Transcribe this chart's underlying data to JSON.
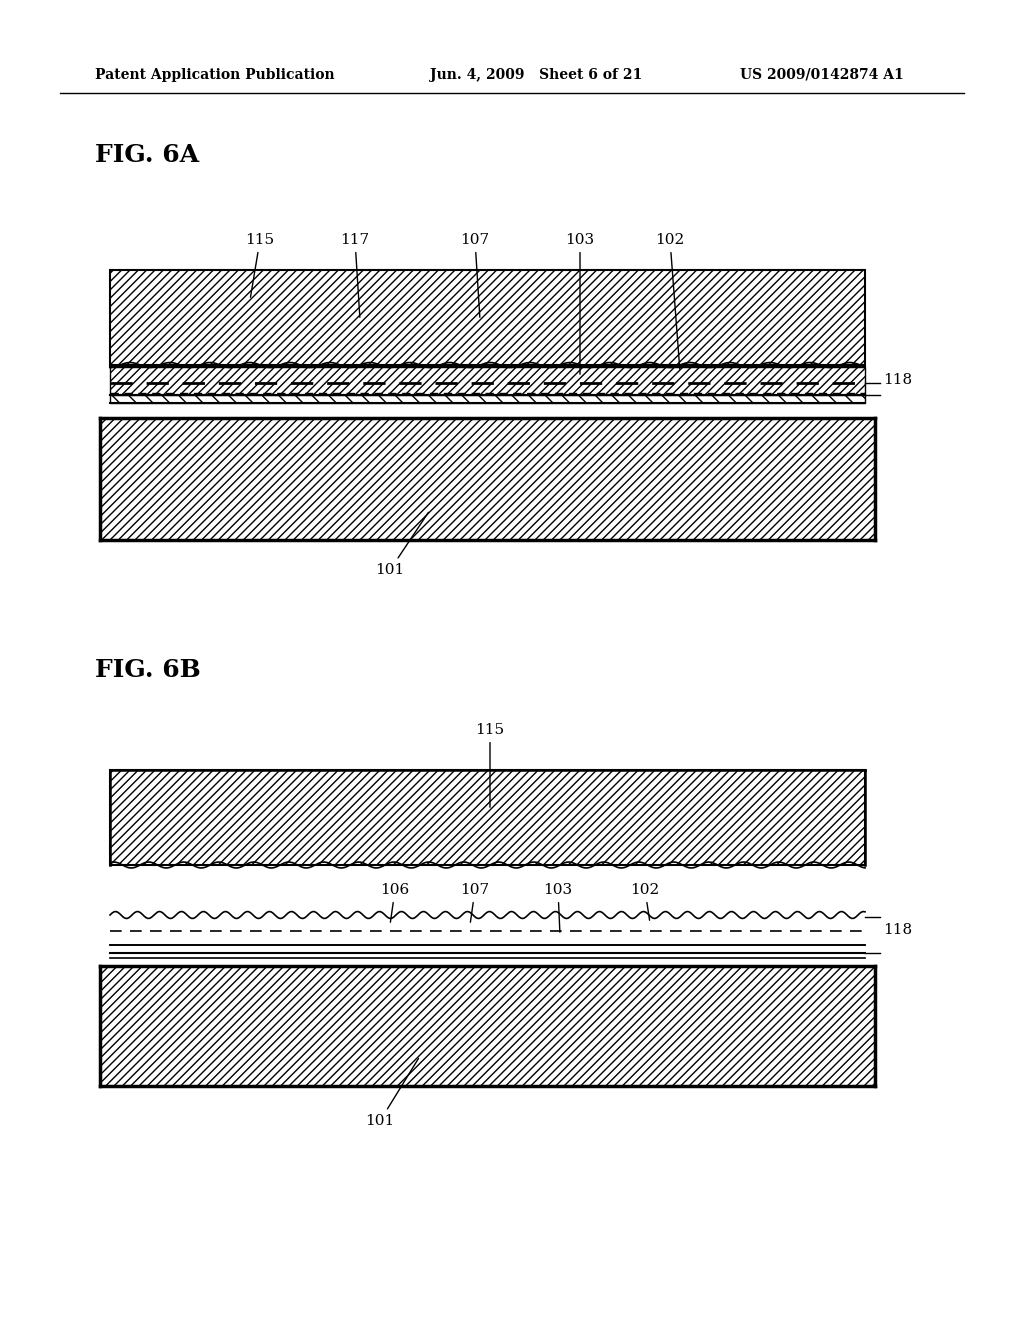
{
  "bg_color": "#ffffff",
  "text_color": "#000000",
  "header_left": "Patent Application Publication",
  "header_center": "Jun. 4, 2009   Sheet 6 of 21",
  "header_right": "US 2009/0142874 A1",
  "fig6a_label": "FIG. 6A",
  "fig6b_label": "FIG. 6B",
  "line_color": "#000000",
  "hatch_color": "#000000"
}
